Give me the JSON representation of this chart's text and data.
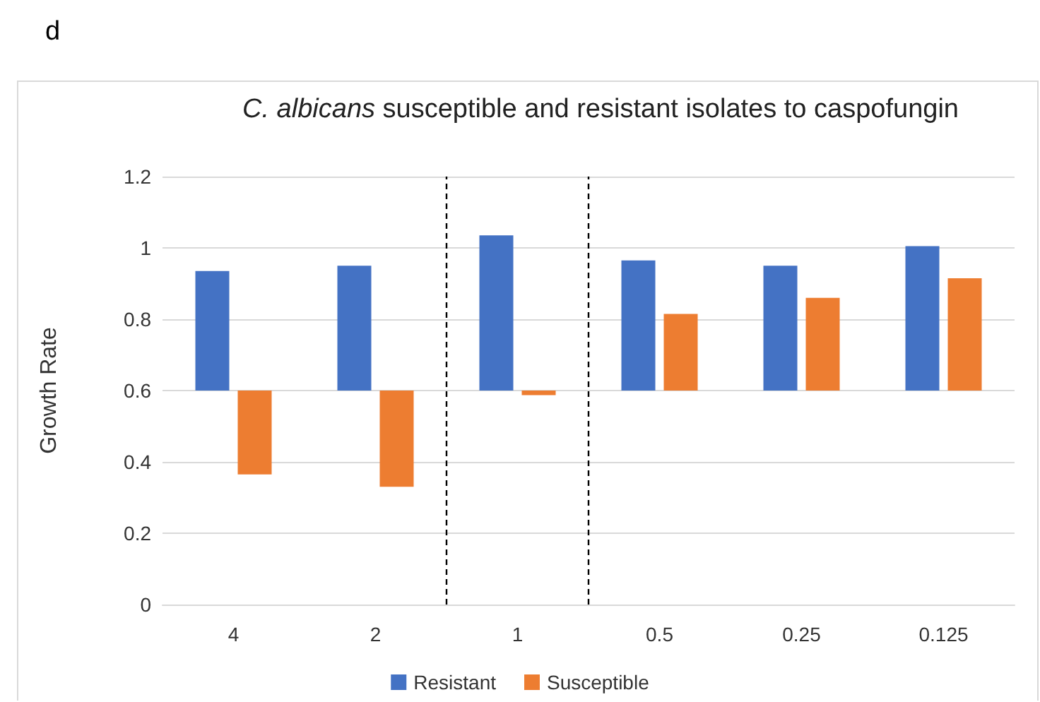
{
  "chart_data": {
    "type": "bar",
    "title": "C. albicans susceptible and resistant isolates to caspofungin",
    "ylabel": "Growth Rate",
    "annotations": [
      "d"
    ],
    "categories": [
      "4",
      "2",
      "1",
      "0.5",
      "0.25",
      "0.125"
    ],
    "series": [
      {
        "name": "Resistant",
        "color": "#4472c4",
        "base": [
          0.6,
          0.6,
          0.6,
          0.6,
          0.6,
          0.6
        ],
        "values": [
          0.335,
          0.35,
          0.435,
          0.365,
          0.35,
          0.405
        ]
      },
      {
        "name": "Susceptible",
        "color": "#ed7d31",
        "base": [
          0.6,
          0.6,
          0.6,
          0.6,
          0.6,
          0.6
        ],
        "values": [
          -0.235,
          -0.27,
          -0.013,
          0.215,
          0.26,
          0.315
        ]
      }
    ],
    "ylim": [
      0,
      1.2
    ],
    "yticks": [
      0,
      0.2,
      0.4,
      0.6,
      0.8,
      1,
      1.2
    ],
    "grid": "y",
    "legend": "bottom"
  }
}
